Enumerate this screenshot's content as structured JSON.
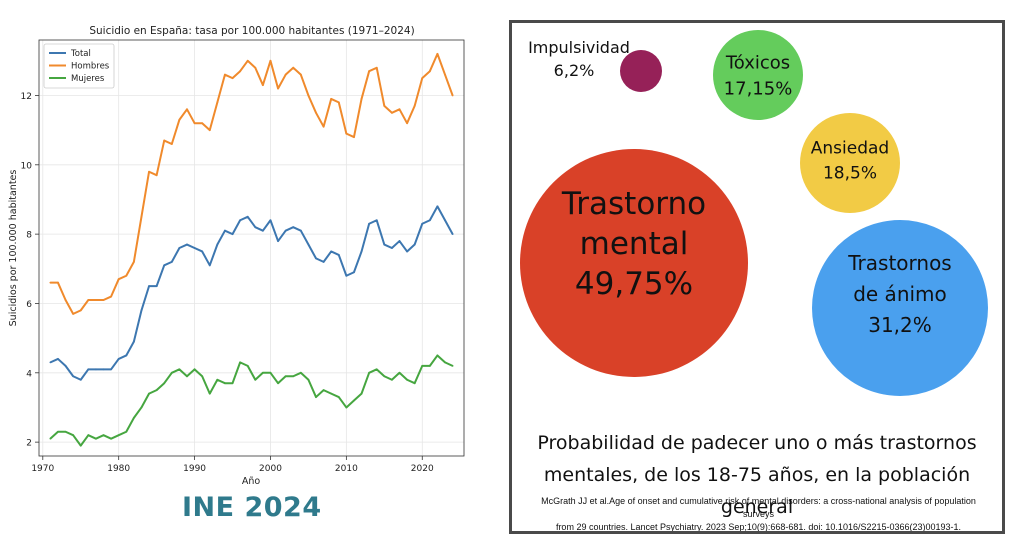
{
  "chart_data": [
    {
      "type": "line",
      "title": "Suicidio en España: tasa por 100.000 habitantes (1971–2024)",
      "xlabel": "Año",
      "ylabel": "Suicidios por 100.000 habitantes",
      "xlim": [
        1969.5,
        2025.5
      ],
      "ylim": [
        1.6,
        13.6
      ],
      "xticks": [
        1970,
        1980,
        1990,
        2000,
        2010,
        2020
      ],
      "yticks": [
        2,
        4,
        6,
        8,
        10,
        12
      ],
      "grid": true,
      "legend_position": "top-left",
      "x": [
        1971,
        1972,
        1973,
        1974,
        1975,
        1976,
        1977,
        1978,
        1979,
        1980,
        1981,
        1982,
        1983,
        1984,
        1985,
        1986,
        1987,
        1988,
        1989,
        1990,
        1991,
        1992,
        1993,
        1994,
        1995,
        1996,
        1997,
        1998,
        1999,
        2000,
        2001,
        2002,
        2003,
        2004,
        2005,
        2006,
        2007,
        2008,
        2009,
        2010,
        2011,
        2012,
        2013,
        2014,
        2015,
        2016,
        2017,
        2018,
        2019,
        2020,
        2021,
        2022,
        2023,
        2024
      ],
      "series": [
        {
          "name": "Total",
          "color": "#3d77b0",
          "values": [
            4.3,
            4.4,
            4.2,
            3.9,
            3.8,
            4.1,
            4.1,
            4.1,
            4.1,
            4.4,
            4.5,
            4.9,
            5.8,
            6.5,
            6.5,
            7.1,
            7.2,
            7.6,
            7.7,
            7.6,
            7.5,
            7.1,
            7.7,
            8.1,
            8.0,
            8.4,
            8.5,
            8.2,
            8.1,
            8.4,
            7.8,
            8.1,
            8.2,
            8.1,
            7.7,
            7.3,
            7.2,
            7.5,
            7.4,
            6.8,
            6.9,
            7.5,
            8.3,
            8.4,
            7.7,
            7.6,
            7.8,
            7.5,
            7.7,
            8.3,
            8.4,
            8.8,
            8.4,
            8.0
          ]
        },
        {
          "name": "Hombres",
          "color": "#f08a2c",
          "values": [
            6.6,
            6.6,
            6.1,
            5.7,
            5.8,
            6.1,
            6.1,
            6.1,
            6.2,
            6.7,
            6.8,
            7.2,
            8.5,
            9.8,
            9.7,
            10.7,
            10.6,
            11.3,
            11.6,
            11.2,
            11.2,
            11.0,
            11.8,
            12.6,
            12.5,
            12.7,
            13.0,
            12.8,
            12.3,
            13.0,
            12.2,
            12.6,
            12.8,
            12.6,
            12.0,
            11.5,
            11.1,
            11.9,
            11.8,
            10.9,
            10.8,
            11.9,
            12.7,
            12.8,
            11.7,
            11.5,
            11.6,
            11.2,
            11.7,
            12.5,
            12.7,
            13.2,
            12.6,
            12.0
          ]
        },
        {
          "name": "Mujeres",
          "color": "#46a640",
          "values": [
            2.1,
            2.3,
            2.3,
            2.2,
            1.9,
            2.2,
            2.1,
            2.2,
            2.1,
            2.2,
            2.3,
            2.7,
            3.0,
            3.4,
            3.5,
            3.7,
            4.0,
            4.1,
            3.9,
            4.1,
            3.9,
            3.4,
            3.8,
            3.7,
            3.7,
            4.3,
            4.2,
            3.8,
            4.0,
            4.0,
            3.7,
            3.9,
            3.9,
            4.0,
            3.8,
            3.3,
            3.5,
            3.4,
            3.3,
            3.0,
            3.2,
            3.4,
            4.0,
            4.1,
            3.9,
            3.8,
            4.0,
            3.8,
            3.7,
            4.2,
            4.2,
            4.5,
            4.3,
            4.2
          ]
        }
      ]
    },
    {
      "type": "bubble",
      "title": "Probabilidad de padecer uno o más trastornos mentales, de los 18-75 años, en la población general",
      "bubbles": [
        {
          "label_lines": [
            "Trastorno",
            "mental",
            "49,75%"
          ],
          "value": 49.75,
          "color": "#d94128"
        },
        {
          "label_lines": [
            "Trastornos",
            "de ánimo",
            "31,2%"
          ],
          "value": 31.2,
          "color": "#4aa0ee"
        },
        {
          "label_lines": [
            "Ansiedad",
            "18,5%"
          ],
          "value": 18.5,
          "color": "#f2cb45"
        },
        {
          "label_lines": [
            "Tóxicos",
            "17,15%"
          ],
          "value": 17.15,
          "color": "#64cc5c"
        },
        {
          "label_lines": [
            "Impulsividad",
            "6,2%"
          ],
          "value": 6.2,
          "color": "#962158"
        }
      ]
    }
  ],
  "source_tag": "INE 2024",
  "caption_line1": "Probabilidad de padecer uno o más trastornos",
  "caption_line2": "mentales, de los 18-75 años, en la población general",
  "reference_line1": "McGrath JJ et al.Age of onset and cumulative risk of mental disorders: a cross-national analysis of population surveys",
  "reference_line2": "from 29 countries. Lancet Psychiatry. 2023 Sep;10(9):668-681. doi: 10.1016/S2215-0366(23)00193-1."
}
